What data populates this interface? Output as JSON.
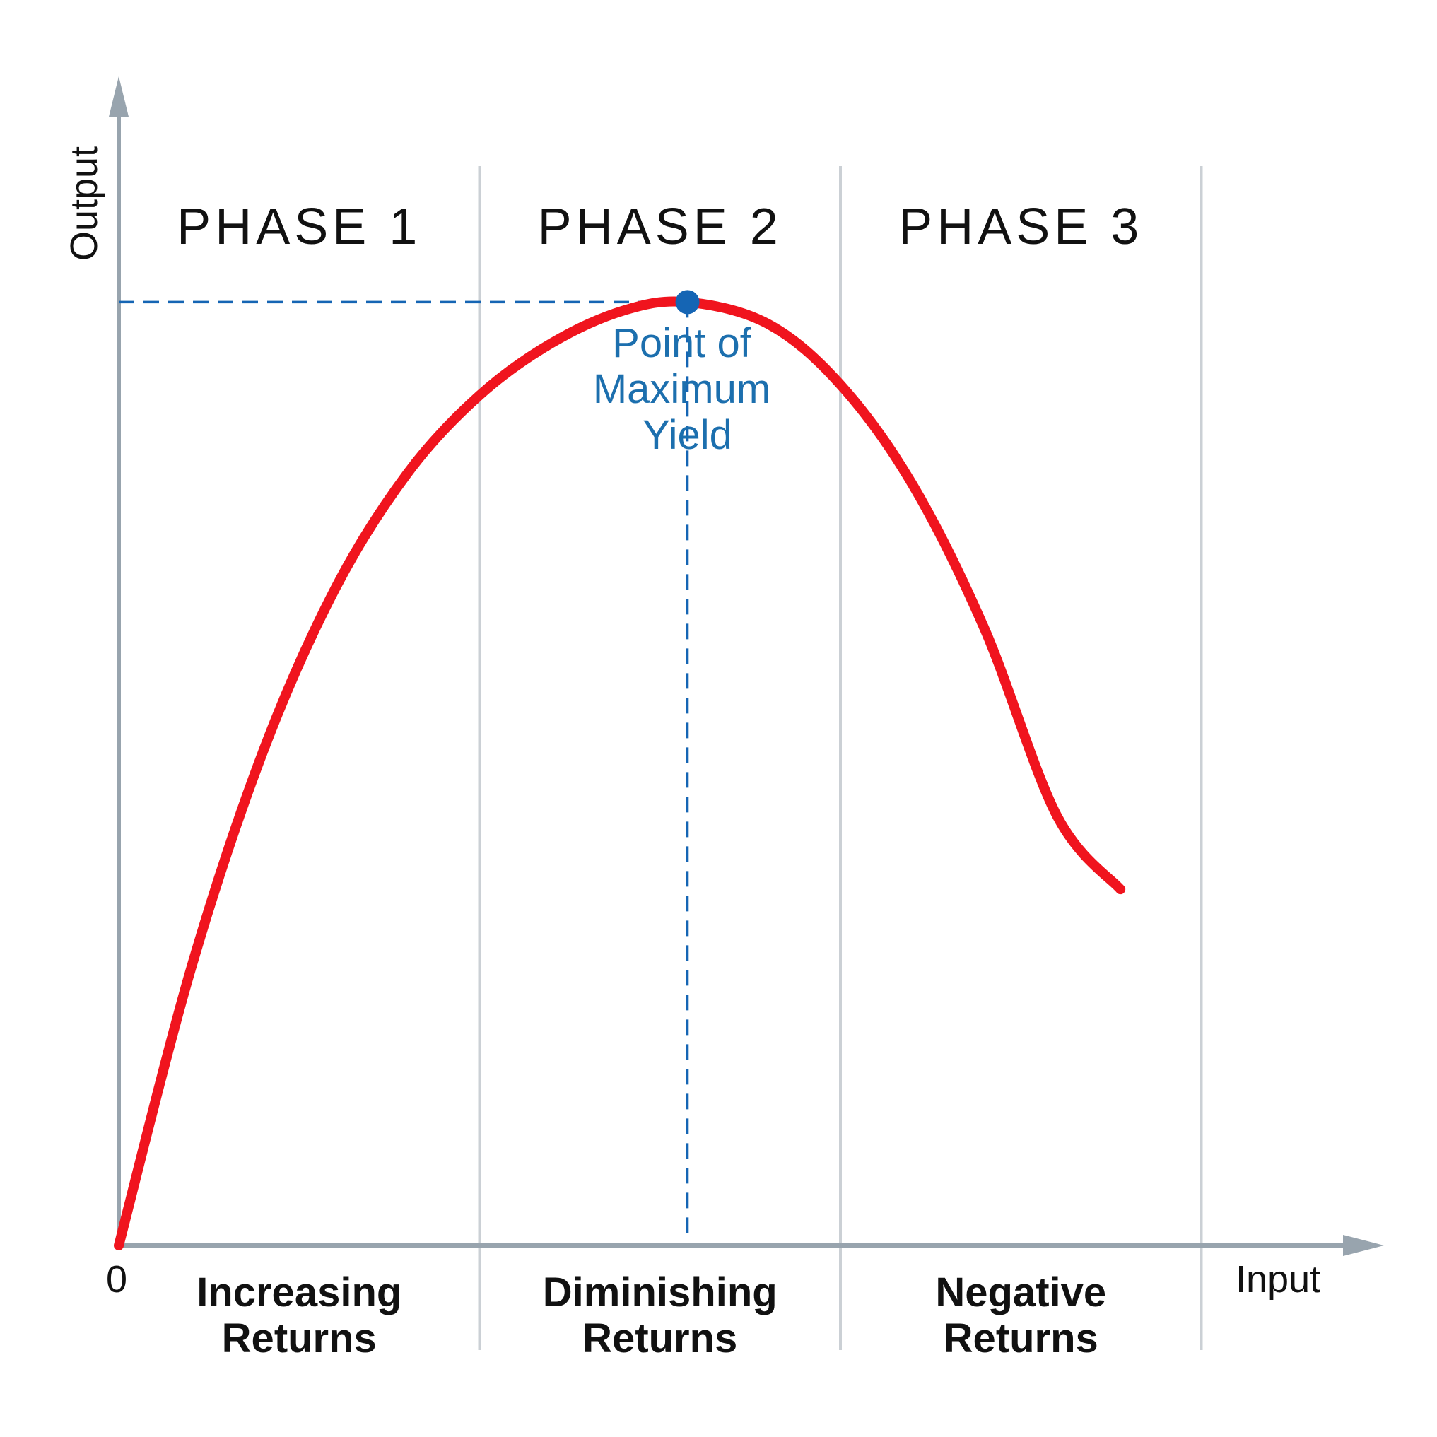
{
  "chart_data": {
    "type": "line",
    "title": "",
    "xlabel": "Input",
    "ylabel": "Output",
    "x_origin_label": "0",
    "xlim": [
      0,
      1.5
    ],
    "ylim": [
      0,
      1.5
    ],
    "phase_boundaries": [
      0.5,
      1.0,
      1.5
    ],
    "phases": [
      {
        "label": "PHASE 1",
        "region": [
          "Increasing",
          "Returns"
        ]
      },
      {
        "label": "PHASE 2",
        "region": [
          "Diminishing",
          "Returns"
        ]
      },
      {
        "label": "PHASE 3",
        "region": [
          "Negative",
          "Returns"
        ]
      }
    ],
    "series": [
      {
        "color": "#f0141e",
        "x": [
          0,
          0.1,
          0.2,
          0.3,
          0.4,
          0.5,
          0.6,
          0.7,
          0.788,
          0.9,
          1.0,
          1.1,
          1.2,
          1.3,
          1.388
        ],
        "y": [
          0,
          0.365,
          0.652,
          0.867,
          1.019,
          1.122,
          1.191,
          1.234,
          1.245,
          1.216,
          1.136,
          1.004,
          0.813,
          0.567,
          0.47
        ]
      }
    ],
    "max_point": {
      "x": 0.788,
      "y": 1.245,
      "label": [
        "Point of",
        "Maximum",
        "Yield"
      ],
      "color": "#1565b4"
    },
    "grid": false,
    "legend": "none",
    "axis_color": "#98a4ae",
    "divider_color": "#cbd0d5"
  }
}
